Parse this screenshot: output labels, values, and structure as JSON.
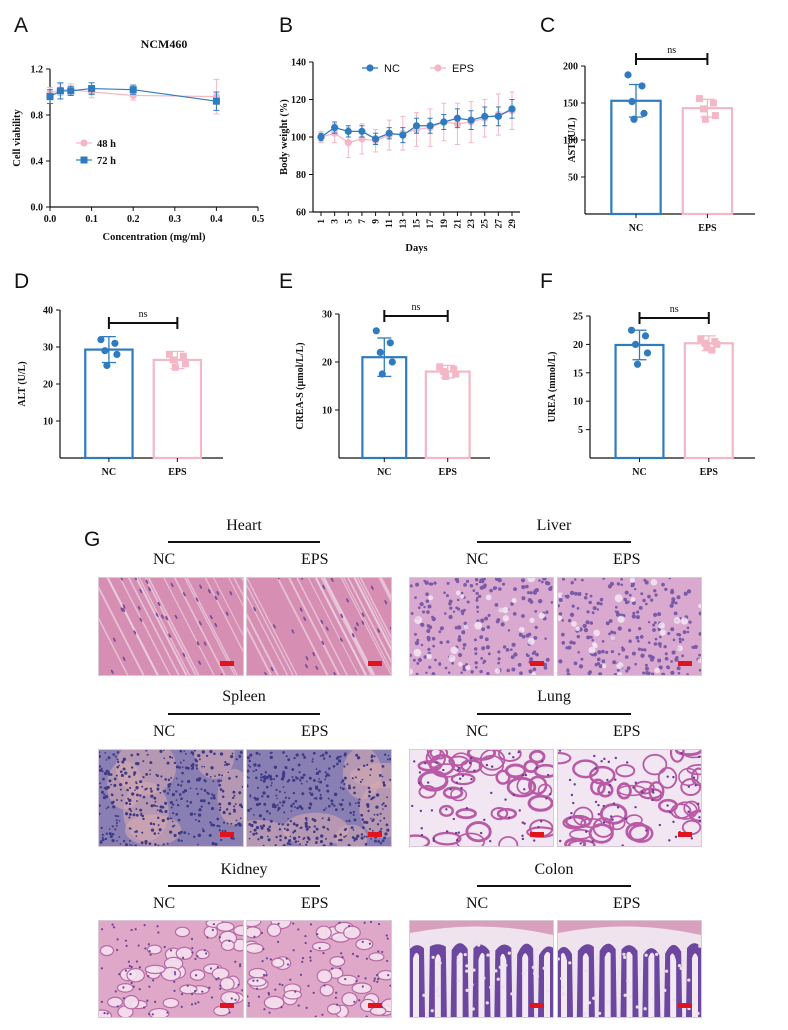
{
  "panel_letters": {
    "A": "A",
    "B": "B",
    "C": "C",
    "D": "D",
    "E": "E",
    "F": "F",
    "G": "G"
  },
  "colors": {
    "nc": "#2f7bbf",
    "eps": "#f4b7c6",
    "scalebar": "#e0141e",
    "axis": "#111111"
  },
  "chart_data": [
    {
      "id": "A",
      "type": "line",
      "title": "NCM460",
      "xlabel": "Concentration (mg/ml)",
      "ylabel": "Cell viability",
      "xlim": [
        0,
        0.5
      ],
      "ylim": [
        0,
        1.2
      ],
      "xticks": [
        "0.0",
        "0.1",
        "0.2",
        "0.3",
        "0.4",
        "0.5"
      ],
      "yticks": [
        "0.0",
        "0.4",
        "0.8",
        "1.2"
      ],
      "legend_position": "middle-left",
      "series": [
        {
          "name": "48 h",
          "color": "#f4b7c6",
          "marker": "circle",
          "x": [
            0,
            0.025,
            0.05,
            0.1,
            0.2,
            0.4
          ],
          "y": [
            0.99,
            1.02,
            1.02,
            1.0,
            0.97,
            0.96
          ],
          "err": [
            0.05,
            0.05,
            0.05,
            0.05,
            0.04,
            0.15
          ]
        },
        {
          "name": "72 h",
          "color": "#2f7bbf",
          "marker": "square",
          "x": [
            0,
            0.025,
            0.05,
            0.1,
            0.2,
            0.4
          ],
          "y": [
            0.96,
            1.01,
            1.01,
            1.03,
            1.02,
            0.92
          ],
          "err": [
            0.06,
            0.07,
            0.04,
            0.05,
            0.04,
            0.08
          ]
        }
      ]
    },
    {
      "id": "B",
      "type": "line",
      "xlabel": "Days",
      "ylabel": "Body weight (%)",
      "ylim": [
        60,
        140
      ],
      "yticks": [
        "60",
        "80",
        "100",
        "120",
        "140"
      ],
      "legend_position": "top",
      "categories": [
        "1",
        "3",
        "5",
        "7",
        "9",
        "11",
        "13",
        "15",
        "17",
        "19",
        "21",
        "23",
        "25",
        "27",
        "29"
      ],
      "series": [
        {
          "name": "NC",
          "color": "#2f7bbf",
          "values": [
            100,
            105,
            103,
            103,
            99,
            102,
            101,
            106,
            106,
            108,
            110,
            109,
            111,
            111,
            115
          ],
          "err": [
            2,
            3,
            3,
            3,
            3,
            3,
            4,
            4,
            4,
            4,
            5,
            5,
            5,
            5,
            5
          ]
        },
        {
          "name": "EPS",
          "color": "#f4b7c6",
          "values": [
            100,
            102,
            97,
            99,
            98,
            101,
            102,
            104,
            105,
            108,
            107,
            108,
            110,
            112,
            114
          ],
          "err": [
            3,
            5,
            8,
            8,
            6,
            8,
            9,
            9,
            10,
            10,
            11,
            11,
            10,
            11,
            10
          ]
        }
      ]
    },
    {
      "id": "C",
      "type": "bar",
      "ylabel": "AST (U/L)",
      "ylim": [
        0,
        200
      ],
      "yticks": [
        "50",
        "100",
        "150",
        "200"
      ],
      "categories": [
        "NC",
        "EPS"
      ],
      "values": [
        153,
        143
      ],
      "err": [
        22,
        12
      ],
      "points": [
        [
          188,
          173,
          152,
          136,
          128
        ],
        [
          156,
          150,
          142,
          133,
          128
        ]
      ],
      "annotation": "ns"
    },
    {
      "id": "D",
      "type": "bar",
      "ylabel": "ALT (U/L)",
      "ylim": [
        0,
        40
      ],
      "yticks": [
        "10",
        "20",
        "30",
        "40"
      ],
      "categories": [
        "NC",
        "EPS"
      ],
      "values": [
        29.3,
        26.5
      ],
      "err": [
        3.5,
        2.3
      ],
      "points": [
        [
          32,
          31,
          29,
          28,
          25
        ],
        [
          28,
          27.5,
          26.5,
          25.5,
          24.5
        ]
      ],
      "annotation": "ns"
    },
    {
      "id": "E",
      "type": "bar",
      "ylabel": "CREA-S (µmol/L/L)",
      "ylim": [
        0,
        30
      ],
      "yticks": [
        "10",
        "20",
        "30"
      ],
      "categories": [
        "NC",
        "EPS"
      ],
      "values": [
        21,
        18
      ],
      "err": [
        4,
        1.3
      ],
      "points": [
        [
          26.5,
          24,
          22,
          20,
          17.5
        ],
        [
          19,
          18.5,
          18,
          17.5,
          17
        ]
      ],
      "annotation": "ns"
    },
    {
      "id": "F",
      "type": "bar",
      "ylabel": "UREA (mmol/L)",
      "ylim": [
        0,
        25
      ],
      "yticks": [
        "5",
        "10",
        "15",
        "20",
        "25"
      ],
      "categories": [
        "NC",
        "EPS"
      ],
      "values": [
        19.9,
        20.2
      ],
      "err": [
        2.6,
        1.3
      ],
      "points": [
        [
          22.5,
          21.5,
          20,
          18.5,
          16.5
        ],
        [
          21,
          20.5,
          20.2,
          20,
          19.5,
          19
        ]
      ],
      "annotation": "ns"
    }
  ],
  "histology": {
    "col_nc": "NC",
    "col_eps": "EPS",
    "organs": [
      {
        "name": "Heart",
        "tissue": "muscle"
      },
      {
        "name": "Liver",
        "tissue": "liver"
      },
      {
        "name": "Spleen",
        "tissue": "spleen"
      },
      {
        "name": "Lung",
        "tissue": "lung"
      },
      {
        "name": "Kidney",
        "tissue": "kidney"
      },
      {
        "name": "Colon",
        "tissue": "colon"
      }
    ]
  }
}
